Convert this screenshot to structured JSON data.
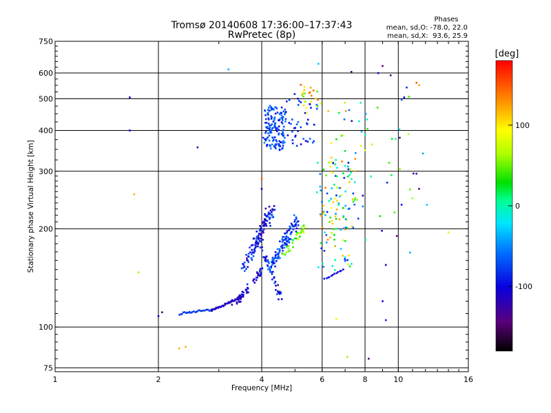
{
  "chart_data": {
    "type": "scatter",
    "title": "Tromsø 20140608 17:36:00–17:37:43",
    "subtitle": "RwPretec (8p)",
    "xlabel": "Frequency [MHz]",
    "ylabel": "Stationary phase Virtual Height [km]",
    "xscale": "log",
    "yscale": "log",
    "xlim": [
      1,
      16
    ],
    "ylim": [
      73,
      750
    ],
    "x_ticks": [
      1,
      2,
      4,
      6,
      8,
      10,
      16
    ],
    "x_tick_labels": [
      "1",
      "2",
      "4",
      "6",
      "8",
      "10",
      "16"
    ],
    "y_ticks": [
      75,
      100,
      200,
      300,
      400,
      500,
      600,
      750
    ],
    "y_tick_labels": [
      "75",
      "100",
      "200",
      "300",
      "400",
      "500",
      "600",
      "750"
    ],
    "grid": true,
    "phases_box": {
      "title": "Phases",
      "line1": "mean, sd,O: -78.0, 22.0",
      "line2": "mean, sd,X:  93.6, 25.9"
    },
    "colorbar": {
      "label": "[deg]",
      "min": -180,
      "max": 180,
      "ticks": [
        100,
        0,
        -100
      ],
      "tick_labels": [
        "100",
        "0",
        "-100"
      ],
      "colormap": "rainbow"
    },
    "series": [
      {
        "name": "echoes",
        "clusters": [
          {
            "x": [
              2.3,
              2.85
            ],
            "y": [
              110,
              113
            ],
            "phase": [
              -85,
              -75
            ],
            "n": 25,
            "kind": "line"
          },
          {
            "x": [
              2.85,
              3.5
            ],
            "y": [
              112,
              124
            ],
            "phase": [
              -130,
              -100
            ],
            "n": 40,
            "kind": "line"
          },
          {
            "x": [
              3.3,
              4.0
            ],
            "y": [
              115,
              150
            ],
            "phase": [
              -125,
              -80
            ],
            "n": 50,
            "kind": "band",
            "spread": 0.04
          },
          {
            "x": [
              3.55,
              4.3
            ],
            "y": [
              150,
              230
            ],
            "phase": [
              -130,
              -60
            ],
            "n": 120,
            "kind": "band",
            "spread": 0.06
          },
          {
            "x": [
              3.9,
              4.6
            ],
            "y": [
              190,
              120
            ],
            "phase": [
              -120,
              -70
            ],
            "n": 40,
            "kind": "band",
            "spread": 0.05
          },
          {
            "x": [
              4.2,
              5.1
            ],
            "y": [
              150,
              215
            ],
            "phase": [
              -110,
              -50
            ],
            "n": 110,
            "kind": "band",
            "spread": 0.06
          },
          {
            "x": [
              4.6,
              5.4
            ],
            "y": [
              165,
              205
            ],
            "phase": [
              10,
              100
            ],
            "n": 35,
            "kind": "band",
            "spread": 0.05
          },
          {
            "x": [
              4.1,
              4.7
            ],
            "y": [
              350,
              470
            ],
            "phase": [
              -100,
              -50
            ],
            "n": 150,
            "kind": "blob",
            "spread": 0.035
          },
          {
            "x": [
              4.7,
              5.8
            ],
            "y": [
              360,
              500
            ],
            "phase": [
              -110,
              -60
            ],
            "n": 40,
            "kind": "blob",
            "spread": 0.05
          },
          {
            "x": [
              5.2,
              5.9
            ],
            "y": [
              450,
              560
            ],
            "phase": [
              40,
              150
            ],
            "n": 25,
            "kind": "blob",
            "spread": 0.04
          },
          {
            "x": [
              5.9,
              7.5
            ],
            "y": [
              200,
              320
            ],
            "phase": [
              -100,
              140
            ],
            "n": 90,
            "kind": "blob",
            "spread": 0.08
          },
          {
            "x": [
              5.9,
              7.4
            ],
            "y": [
              150,
              200
            ],
            "phase": [
              -100,
              130
            ],
            "n": 35,
            "kind": "blob",
            "spread": 0.08
          },
          {
            "x": [
              6.1,
              6.9
            ],
            "y": [
              140,
              150
            ],
            "phase": [
              -110,
              -90
            ],
            "n": 12,
            "kind": "line"
          },
          {
            "x": [
              6.3,
              8.8
            ],
            "y": [
              320,
              480
            ],
            "phase": [
              -60,
              150
            ],
            "n": 25,
            "kind": "blob",
            "spread": 0.1
          },
          {
            "x": [
              7.5,
              11.5
            ],
            "y": [
              180,
              620
            ],
            "phase": [
              -130,
              80
            ],
            "n": 28,
            "kind": "scatter",
            "spread": 0.15
          }
        ],
        "isolated_points": [
          {
            "x": 1.65,
            "y": 505,
            "phase": -105
          },
          {
            "x": 1.65,
            "y": 400,
            "phase": -105
          },
          {
            "x": 1.7,
            "y": 255,
            "phase": 120
          },
          {
            "x": 1.75,
            "y": 147,
            "phase": 60
          },
          {
            "x": 2.0,
            "y": 108,
            "phase": -110
          },
          {
            "x": 2.05,
            "y": 111,
            "phase": -150
          },
          {
            "x": 2.3,
            "y": 86,
            "phase": 120
          },
          {
            "x": 2.4,
            "y": 87,
            "phase": 120
          },
          {
            "x": 2.6,
            "y": 355,
            "phase": -130
          },
          {
            "x": 3.2,
            "y": 615,
            "phase": -40
          },
          {
            "x": 4.0,
            "y": 285,
            "phase": 150
          },
          {
            "x": 4.0,
            "y": 265,
            "phase": -100
          },
          {
            "x": 5.85,
            "y": 640,
            "phase": -30
          },
          {
            "x": 7.3,
            "y": 605,
            "phase": -140
          },
          {
            "x": 7.1,
            "y": 81,
            "phase": 60
          },
          {
            "x": 8.2,
            "y": 80,
            "phase": -150
          },
          {
            "x": 9.0,
            "y": 630,
            "phase": -140
          },
          {
            "x": 9.5,
            "y": 590,
            "phase": -150
          },
          {
            "x": 10.1,
            "y": 380,
            "phase": -140
          },
          {
            "x": 10.4,
            "y": 505,
            "phase": -110
          },
          {
            "x": 11.3,
            "y": 560,
            "phase": 150
          },
          {
            "x": 11.5,
            "y": 550,
            "phase": 120
          },
          {
            "x": 11.8,
            "y": 340,
            "phase": -40
          },
          {
            "x": 11.3,
            "y": 295,
            "phase": -120
          },
          {
            "x": 11.5,
            "y": 265,
            "phase": -140
          },
          {
            "x": 11.0,
            "y": 248,
            "phase": 60
          },
          {
            "x": 9.9,
            "y": 190,
            "phase": -140
          },
          {
            "x": 14.0,
            "y": 195,
            "phase": 80
          },
          {
            "x": 9.2,
            "y": 105,
            "phase": -90
          },
          {
            "x": 9.0,
            "y": 120,
            "phase": -100
          },
          {
            "x": 6.6,
            "y": 106,
            "phase": 100
          },
          {
            "x": 9.2,
            "y": 155,
            "phase": -110
          },
          {
            "x": 8.7,
            "y": 470,
            "phase": 40
          }
        ]
      }
    ]
  }
}
